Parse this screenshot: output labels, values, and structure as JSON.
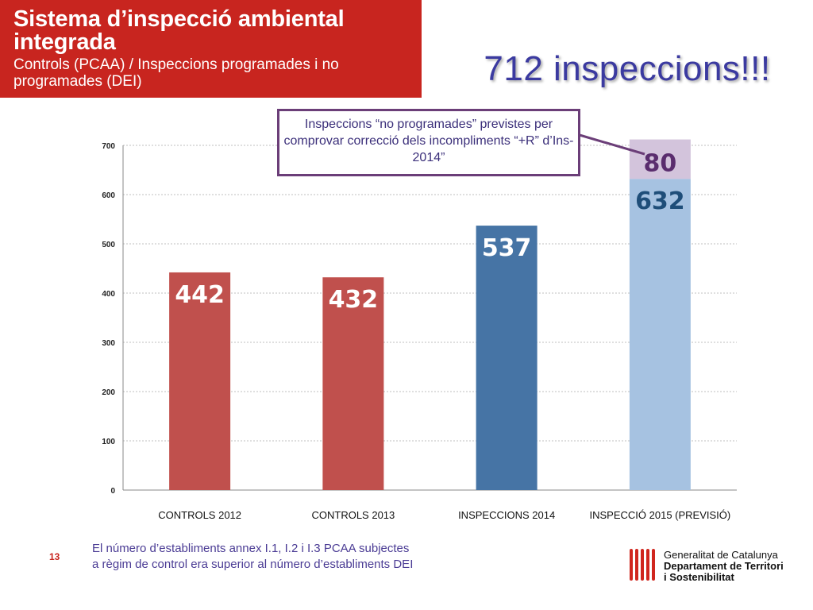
{
  "header": {
    "title": "Sistema d’inspecció ambiental integrada",
    "subtitle": "Controls (PCAA) / Inspeccions programades i no programades (DEI)"
  },
  "big_title": "712 inspeccions!!!",
  "callout": {
    "text": "Inspeccions “no programades” previstes per comprovar correcció dels incompliments “+R” d’Ins-2014”"
  },
  "chart_data": {
    "type": "bar",
    "categories": [
      "CONTROLS 2012",
      "CONTROLS 2013",
      "INSPECCIONS 2014",
      "INSPECCIÓ 2015 (PREVISIÓ)"
    ],
    "series": [
      {
        "values": [
          442,
          432,
          537,
          632
        ],
        "colors": [
          "#c0504d",
          "#c0504d",
          "#4674a5",
          "#a6c2e1"
        ]
      },
      {
        "values": [
          0,
          0,
          0,
          80
        ],
        "colors": [
          "#d3c4dc",
          "#d3c4dc",
          "#d3c4dc",
          "#d3c4dc"
        ]
      }
    ],
    "stacked": true,
    "data_labels": [
      "442",
      "432",
      "537",
      "632",
      "80"
    ],
    "yticks": [
      "0",
      "100",
      "200",
      "300",
      "400",
      "500",
      "600",
      "700"
    ],
    "ylim": [
      0,
      700
    ],
    "grid": true,
    "title": "",
    "xlabel": "",
    "ylabel": ""
  },
  "footer": {
    "page_number": "13",
    "footnote_line1": "El número d’establiments annex I.1, I.2 i I.3 PCAA subjectes",
    "footnote_line2": "a règim de control era superior al número d’establiments DEI"
  },
  "logo": {
    "line1": "Generalitat de Catalunya",
    "line2": "Departament de Territori",
    "line3": "i Sostenibilitat",
    "stripe_color": "#d0261e"
  }
}
